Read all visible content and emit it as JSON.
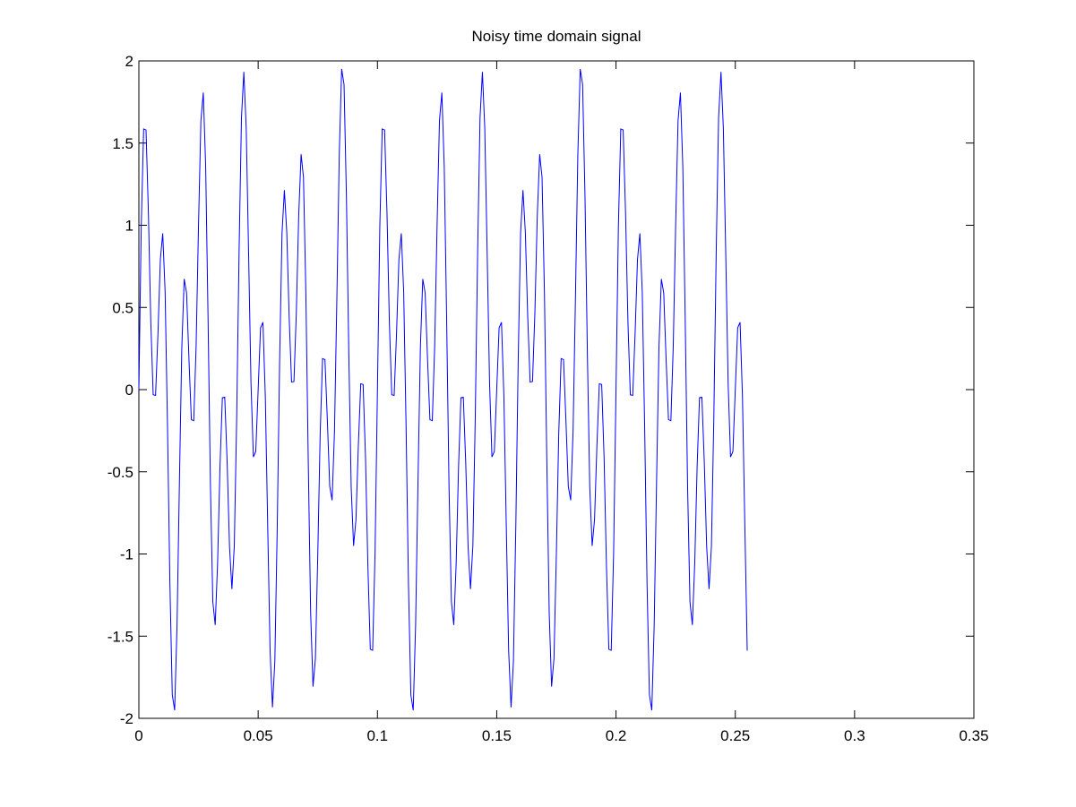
{
  "chart_data": {
    "type": "line",
    "title": "Noisy time domain signal",
    "color": "#0000ff",
    "xlim": [
      0,
      0.35
    ],
    "xticks": [
      0,
      0.05,
      0.1,
      0.15,
      0.2,
      0.25,
      0.3,
      0.35
    ],
    "ylim": [
      -2,
      2
    ],
    "yticks": [
      -2,
      -1.5,
      -1,
      -0.5,
      0,
      0.5,
      1,
      1.5,
      2
    ],
    "grid": false,
    "x": [
      0,
      0.001,
      0.002,
      0.003,
      0.004,
      0.005,
      0.006,
      0.007,
      0.008,
      0.009,
      0.01,
      0.011,
      0.012,
      0.013,
      0.014,
      0.015,
      0.016,
      0.017,
      0.018,
      0.019,
      0.02,
      0.021,
      0.022,
      0.023,
      0.024,
      0.025,
      0.026,
      0.027,
      0.028,
      0.029,
      0.03,
      0.031,
      0.032,
      0.033,
      0.034,
      0.035,
      0.036,
      0.037,
      0.038,
      0.039,
      0.04,
      0.041,
      0.042,
      0.043,
      0.044,
      0.045,
      0.046,
      0.047,
      0.048,
      0.049,
      0.05,
      0.051,
      0.052,
      0.053,
      0.054,
      0.055,
      0.056,
      0.057,
      0.058,
      0.059,
      0.06,
      0.061,
      0.062,
      0.063,
      0.064,
      0.065,
      0.066,
      0.067,
      0.068,
      0.069,
      0.07,
      0.071,
      0.072,
      0.073,
      0.074,
      0.075,
      0.076,
      0.077,
      0.078,
      0.079,
      0.08,
      0.081,
      0.082,
      0.083,
      0.084,
      0.085,
      0.086,
      0.087,
      0.088,
      0.089,
      0.09,
      0.091,
      0.092,
      0.093,
      0.094,
      0.095,
      0.096,
      0.097,
      0.098,
      0.099,
      0.1,
      0.101,
      0.102,
      0.103,
      0.104,
      0.105,
      0.106,
      0.107,
      0.108,
      0.109,
      0.11,
      0.111,
      0.112,
      0.113,
      0.114,
      0.115,
      0.116,
      0.117,
      0.118,
      0.119,
      0.12,
      0.121,
      0.122,
      0.123,
      0.124,
      0.125,
      0.126,
      0.127,
      0.128,
      0.129,
      0.13,
      0.131,
      0.132,
      0.133,
      0.134,
      0.135,
      0.136,
      0.137,
      0.138,
      0.139,
      0.14,
      0.141,
      0.142,
      0.143,
      0.144,
      0.145,
      0.146,
      0.147,
      0.148,
      0.149,
      0.15,
      0.151,
      0.152,
      0.153,
      0.154,
      0.155,
      0.156,
      0.157,
      0.158,
      0.159,
      0.16,
      0.161,
      0.162,
      0.163,
      0.164,
      0.165,
      0.166,
      0.167,
      0.168,
      0.169,
      0.17,
      0.171,
      0.172,
      0.173,
      0.174,
      0.175,
      0.176,
      0.177,
      0.178,
      0.179,
      0.18,
      0.181,
      0.182,
      0.183,
      0.184,
      0.185,
      0.186,
      0.187,
      0.188,
      0.189,
      0.19,
      0.191,
      0.192,
      0.193,
      0.194,
      0.195,
      0.196,
      0.197,
      0.198,
      0.199,
      0.2,
      0.201,
      0.202,
      0.203,
      0.204,
      0.205,
      0.206,
      0.207,
      0.208,
      0.209,
      0.21,
      0.211,
      0.212,
      0.213,
      0.214,
      0.215,
      0.216,
      0.217,
      0.218,
      0.219,
      0.22,
      0.221,
      0.222,
      0.223,
      0.224,
      0.225,
      0.226,
      0.227,
      0.228,
      0.229,
      0.23,
      0.231,
      0.232,
      0.233,
      0.234,
      0.235,
      0.236,
      0.237,
      0.238,
      0.239,
      0.24,
      0.241,
      0.242,
      0.243,
      0.244,
      0.245,
      0.246,
      0.247,
      0.248,
      0.249,
      0.25,
      0.251,
      0.252,
      0.253,
      0.254,
      0.255
    ],
    "values": [
      0,
      0.994,
      1.586,
      1.58,
      1.076,
      0.412,
      -0.031,
      -0.035,
      0.339,
      0.791,
      0.951,
      0.596,
      -0.22,
      -1.177,
      -1.856,
      -1.951,
      -1.433,
      -0.56,
      0.256,
      0.673,
      0.588,
      0.184,
      -0.183,
      -0.189,
      0.266,
      1,
      1.636,
      1.807,
      1.359,
      0.434,
      -0.588,
      -1.291,
      -1.432,
      -1.058,
      -0.469,
      -0.049,
      -0.046,
      -0.441,
      -0.956,
      -1.214,
      -0.951,
      -0.173,
      0.837,
      1.653,
      1.933,
      1.588,
      0.826,
      0.038,
      -0.41,
      -0.376,
      0,
      0.376,
      0.41,
      -0.038,
      -0.826,
      -1.588,
      -1.933,
      -1.653,
      -0.837,
      0.173,
      0.951,
      1.214,
      0.956,
      0.441,
      0.046,
      0.049,
      0.469,
      1.058,
      1.432,
      1.291,
      0.588,
      -0.434,
      -1.359,
      -1.807,
      -1.636,
      -1,
      -0.266,
      0.189,
      0.183,
      -0.184,
      -0.588,
      -0.673,
      -0.256,
      0.56,
      1.433,
      1.951,
      1.856,
      1.177,
      0.22,
      -0.596,
      -0.951,
      -0.791,
      -0.339,
      0.035,
      0.031,
      -0.412,
      -1.076,
      -1.58,
      -1.586,
      -0.994,
      0,
      0.994,
      1.586,
      1.58,
      1.076,
      0.412,
      -0.031,
      -0.035,
      0.339,
      0.791,
      0.951,
      0.596,
      -0.22,
      -1.177,
      -1.856,
      -1.951,
      -1.433,
      -0.56,
      0.256,
      0.673,
      0.588,
      0.184,
      -0.183,
      -0.189,
      0.266,
      1,
      1.636,
      1.807,
      1.359,
      0.434,
      -0.588,
      -1.291,
      -1.432,
      -1.058,
      -0.469,
      -0.049,
      -0.046,
      -0.441,
      -0.956,
      -1.214,
      -0.951,
      -0.173,
      0.837,
      1.653,
      1.933,
      1.588,
      0.826,
      0.038,
      -0.41,
      -0.376,
      0,
      0.376,
      0.41,
      -0.038,
      -0.826,
      -1.588,
      -1.933,
      -1.653,
      -0.837,
      0.173,
      0.951,
      1.214,
      0.956,
      0.441,
      0.046,
      0.049,
      0.469,
      1.058,
      1.432,
      1.291,
      0.588,
      -0.434,
      -1.359,
      -1.807,
      -1.636,
      -1,
      -0.266,
      0.189,
      0.183,
      -0.184,
      -0.588,
      -0.673,
      -0.256,
      0.56,
      1.433,
      1.951,
      1.856,
      1.177,
      0.22,
      -0.596,
      -0.951,
      -0.791,
      -0.339,
      0.035,
      0.031,
      -0.412,
      -1.076,
      -1.58,
      -1.586,
      -0.994,
      0,
      0.994,
      1.586,
      1.58,
      1.076,
      0.412,
      -0.031,
      -0.035,
      0.339,
      0.791,
      0.951,
      0.596,
      -0.22,
      -1.177,
      -1.856,
      -1.951,
      -1.433,
      -0.56,
      0.256,
      0.673,
      0.588,
      0.184,
      -0.183,
      -0.189,
      0.266,
      1,
      1.636,
      1.807,
      1.359,
      0.434,
      -0.588,
      -1.291,
      -1.432,
      -1.058,
      -0.469,
      -0.049,
      -0.046,
      -0.441,
      -0.956,
      -1.214,
      -0.951,
      -0.173,
      0.837,
      1.653,
      1.933,
      1.588,
      0.826,
      0.038,
      -0.41,
      -0.376,
      0,
      0.376,
      0.41,
      -0.038,
      -0.826,
      -1.588
    ]
  }
}
